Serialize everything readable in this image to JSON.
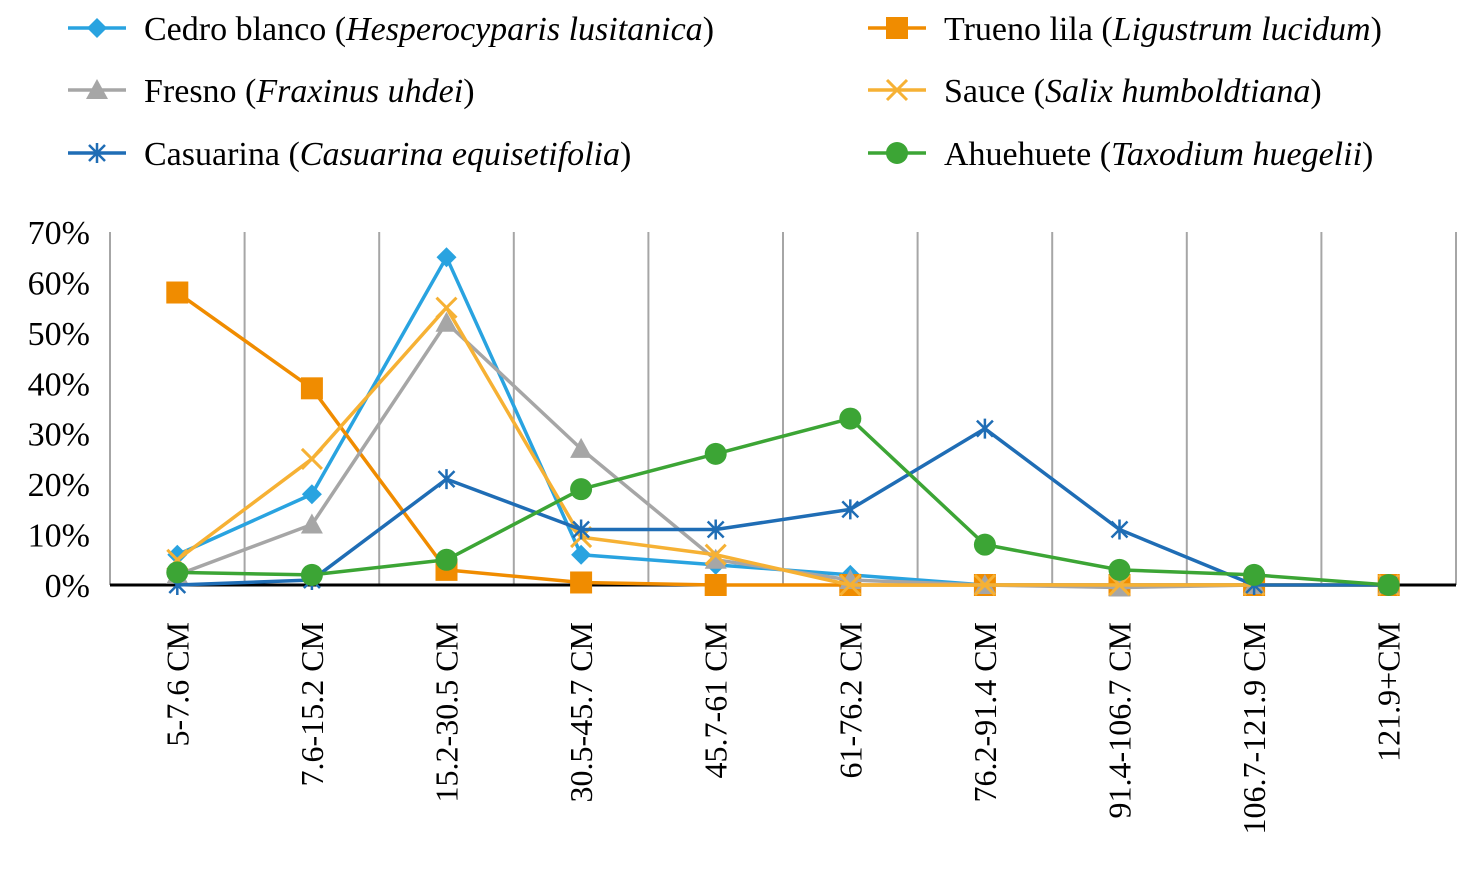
{
  "chart_data": {
    "type": "line",
    "title": "",
    "xlabel": "",
    "ylabel": "",
    "ylim": [
      0,
      0.7
    ],
    "y_ticks": [
      "0%",
      "10%",
      "20%",
      "30%",
      "40%",
      "50%",
      "60%",
      "70%"
    ],
    "grid": "vertical",
    "legend_position": "top",
    "categories": [
      "5-7.6 CM",
      "7.6-15.2 CM",
      "15.2-30.5 CM",
      "30.5-45.7 CM",
      "45.7-61 CM",
      "61-76.2 CM",
      "76.2-91.4 CM",
      "91.4-106.7 CM",
      "106.7-121.9 CM",
      "121.9+CM"
    ],
    "series": [
      {
        "name": "Cedro blanco",
        "scientific": "Hesperocyparis lusitanica",
        "color": "#29A3E0",
        "marker": "diamond",
        "values": [
          0.06,
          0.18,
          0.65,
          0.06,
          0.04,
          0.02,
          0.0,
          0.0,
          0.0,
          0.0
        ]
      },
      {
        "name": "Trueno lila",
        "scientific": "Ligustrum lucidum",
        "color": "#F08C00",
        "marker": "square",
        "values": [
          0.58,
          0.39,
          0.03,
          0.005,
          0.0,
          0.0,
          0.0,
          0.0,
          0.0,
          0.0
        ]
      },
      {
        "name": "Fresno",
        "scientific": "Fraxinus uhdei",
        "color": "#A6A6A6",
        "marker": "triangle",
        "values": [
          0.02,
          0.12,
          0.52,
          0.27,
          0.05,
          0.01,
          0.0,
          -0.005,
          0.0,
          0.0
        ]
      },
      {
        "name": "Sauce",
        "scientific": "Salix humboldtiana",
        "color": "#F6B134",
        "marker": "x",
        "values": [
          0.05,
          0.25,
          0.55,
          0.095,
          0.06,
          0.0,
          0.0,
          0.0,
          0.0,
          0.0
        ]
      },
      {
        "name": "Casuarina",
        "scientific": "Casuarina equisetifolia",
        "color": "#1F6DB5",
        "marker": "star",
        "values": [
          0.0,
          0.01,
          0.21,
          0.11,
          0.11,
          0.15,
          0.31,
          0.11,
          0.0,
          0.0
        ]
      },
      {
        "name": "Ahuehuete",
        "scientific": "Taxodium huegelii",
        "color": "#3CA535",
        "marker": "circle",
        "values": [
          0.025,
          0.02,
          0.05,
          0.19,
          0.26,
          0.33,
          0.08,
          0.03,
          0.02,
          0.0
        ]
      }
    ]
  }
}
